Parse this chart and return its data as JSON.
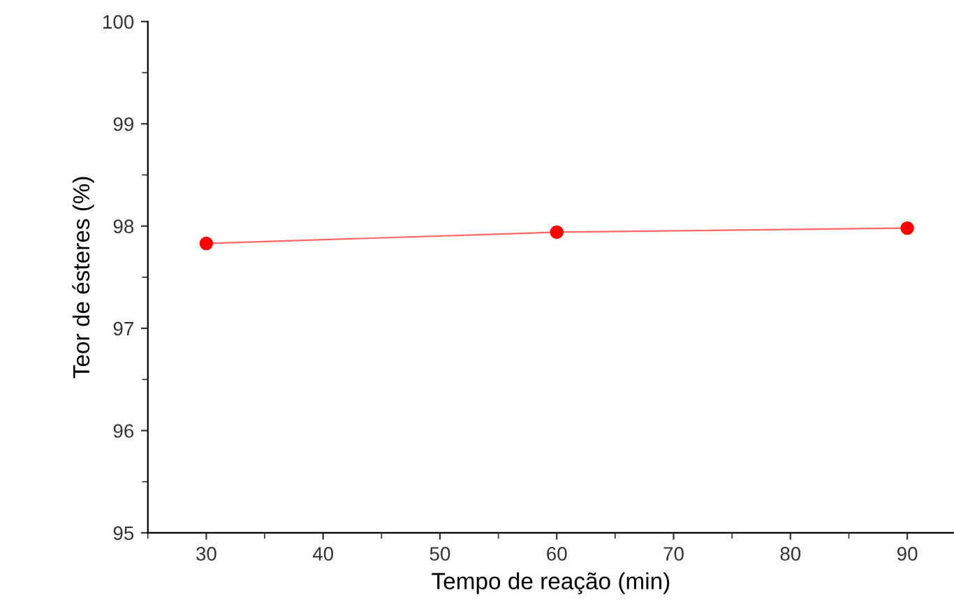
{
  "chart_data": {
    "type": "line",
    "xlabel": "Tempo de reação (min)",
    "ylabel": "Teor de ésteres (%)",
    "x": [
      30,
      60,
      90
    ],
    "series": [
      {
        "color": "#ff0000",
        "values": [
          97.83,
          97.94,
          97.98
        ]
      }
    ],
    "xlim": [
      25,
      94
    ],
    "xticks": [
      30,
      40,
      50,
      60,
      70,
      80,
      90
    ],
    "ylim": [
      95,
      100
    ],
    "yticks": [
      95,
      96,
      97,
      98,
      99,
      100
    ],
    "marker": "circle",
    "line_style": "solid",
    "grid": false,
    "legend": false
  }
}
